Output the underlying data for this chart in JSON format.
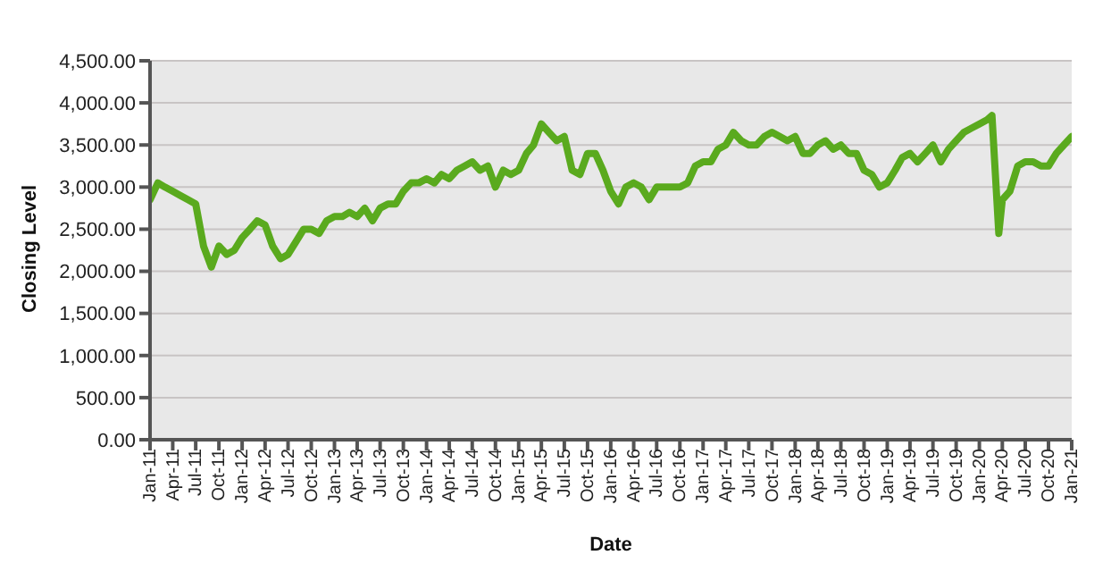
{
  "chart_data": {
    "type": "line",
    "xlabel": "Date",
    "ylabel": "Closing Level",
    "grid": "y",
    "legend": false,
    "marker": "none",
    "line_style": "solid",
    "x": [
      "2011-01",
      "2011-02",
      "2011-03",
      "2011-04",
      "2011-05",
      "2011-06",
      "2011-07",
      "2011-08",
      "2011-09",
      "2011-10",
      "2011-11",
      "2011-12",
      "2012-01",
      "2012-02",
      "2012-03",
      "2012-04",
      "2012-05",
      "2012-06",
      "2012-07",
      "2012-08",
      "2012-09",
      "2012-10",
      "2012-11",
      "2012-12",
      "2013-01",
      "2013-02",
      "2013-03",
      "2013-04",
      "2013-05",
      "2013-06",
      "2013-07",
      "2013-08",
      "2013-09",
      "2013-10",
      "2013-11",
      "2013-12",
      "2014-01",
      "2014-02",
      "2014-03",
      "2014-04",
      "2014-05",
      "2014-06",
      "2014-07",
      "2014-08",
      "2014-09",
      "2014-10",
      "2014-11",
      "2014-12",
      "2015-01",
      "2015-02",
      "2015-03",
      "2015-04",
      "2015-05",
      "2015-06",
      "2015-07",
      "2015-08",
      "2015-09",
      "2015-10",
      "2015-11",
      "2015-12",
      "2016-01",
      "2016-02",
      "2016-03",
      "2016-04",
      "2016-05",
      "2016-06",
      "2016-07",
      "2016-08",
      "2016-09",
      "2016-10",
      "2016-11",
      "2016-12",
      "2017-01",
      "2017-02",
      "2017-03",
      "2017-04",
      "2017-05",
      "2017-06",
      "2017-07",
      "2017-08",
      "2017-09",
      "2017-10",
      "2017-11",
      "2017-12",
      "2018-01",
      "2018-02",
      "2018-03",
      "2018-04",
      "2018-05",
      "2018-06",
      "2018-07",
      "2018-08",
      "2018-09",
      "2018-10",
      "2018-11",
      "2018-12",
      "2019-01",
      "2019-02",
      "2019-03",
      "2019-04",
      "2019-05",
      "2019-06",
      "2019-07",
      "2019-08",
      "2019-09",
      "2019-10",
      "2019-11",
      "2019-12",
      "2020-01",
      "2020-02",
      "2020-02-20",
      "2020-03-18",
      "2020-04",
      "2020-05",
      "2020-06",
      "2020-07",
      "2020-08",
      "2020-09",
      "2020-10",
      "2020-11",
      "2020-12",
      "2021-01"
    ],
    "series": [
      {
        "color": "#5aaa1e",
        "values": [
          2850,
          3050,
          3000,
          2950,
          2900,
          2850,
          2800,
          2300,
          2050,
          2300,
          2200,
          2250,
          2400,
          2500,
          2600,
          2550,
          2300,
          2150,
          2200,
          2350,
          2500,
          2500,
          2450,
          2600,
          2650,
          2650,
          2700,
          2650,
          2750,
          2600,
          2750,
          2800,
          2800,
          2950,
          3050,
          3050,
          3100,
          3050,
          3150,
          3100,
          3200,
          3250,
          3300,
          3200,
          3250,
          3000,
          3200,
          3150,
          3200,
          3400,
          3500,
          3750,
          3650,
          3550,
          3600,
          3200,
          3150,
          3400,
          3400,
          3200,
          2950,
          2800,
          3000,
          3050,
          3000,
          2850,
          3000,
          3000,
          3000,
          3000,
          3050,
          3250,
          3300,
          3300,
          3450,
          3500,
          3650,
          3550,
          3500,
          3500,
          3600,
          3650,
          3600,
          3550,
          3600,
          3400,
          3400,
          3500,
          3550,
          3450,
          3500,
          3400,
          3400,
          3200,
          3150,
          3000,
          3050,
          3200,
          3350,
          3400,
          3300,
          3400,
          3500,
          3300,
          3450,
          3550,
          3650,
          3700,
          3750,
          3800,
          3850,
          2450,
          2850,
          2950,
          3250,
          3300,
          3300,
          3250,
          3250,
          3400,
          3500,
          3600
        ]
      }
    ],
    "xlim": [
      "2011-01",
      "2021-01"
    ],
    "xticks": [
      {
        "value": "2011-01",
        "label": "Jan-11"
      },
      {
        "value": "2011-04",
        "label": "Apr-11"
      },
      {
        "value": "2011-07",
        "label": "Jul-11"
      },
      {
        "value": "2011-10",
        "label": "Oct-11"
      },
      {
        "value": "2012-01",
        "label": "Jan-12"
      },
      {
        "value": "2012-04",
        "label": "Apr-12"
      },
      {
        "value": "2012-07",
        "label": "Jul-12"
      },
      {
        "value": "2012-10",
        "label": "Oct-12"
      },
      {
        "value": "2013-01",
        "label": "Jan-13"
      },
      {
        "value": "2013-04",
        "label": "Apr-13"
      },
      {
        "value": "2013-07",
        "label": "Jul-13"
      },
      {
        "value": "2013-10",
        "label": "Oct-13"
      },
      {
        "value": "2014-01",
        "label": "Jan-14"
      },
      {
        "value": "2014-04",
        "label": "Apr-14"
      },
      {
        "value": "2014-07",
        "label": "Jul-14"
      },
      {
        "value": "2014-10",
        "label": "Oct-14"
      },
      {
        "value": "2015-01",
        "label": "Jan-15"
      },
      {
        "value": "2015-04",
        "label": "Apr-15"
      },
      {
        "value": "2015-07",
        "label": "Jul-15"
      },
      {
        "value": "2015-10",
        "label": "Oct-15"
      },
      {
        "value": "2016-01",
        "label": "Jan-16"
      },
      {
        "value": "2016-04",
        "label": "Apr-16"
      },
      {
        "value": "2016-07",
        "label": "Jul-16"
      },
      {
        "value": "2016-10",
        "label": "Oct-16"
      },
      {
        "value": "2017-01",
        "label": "Jan-17"
      },
      {
        "value": "2017-04",
        "label": "Apr-17"
      },
      {
        "value": "2017-07",
        "label": "Jul-17"
      },
      {
        "value": "2017-10",
        "label": "Oct-17"
      },
      {
        "value": "2018-01",
        "label": "Jan-18"
      },
      {
        "value": "2018-04",
        "label": "Apr-18"
      },
      {
        "value": "2018-07",
        "label": "Jul-18"
      },
      {
        "value": "2018-10",
        "label": "Oct-18"
      },
      {
        "value": "2019-01",
        "label": "Jan-19"
      },
      {
        "value": "2019-04",
        "label": "Apr-19"
      },
      {
        "value": "2019-07",
        "label": "Jul-19"
      },
      {
        "value": "2019-10",
        "label": "Oct-19"
      },
      {
        "value": "2020-01",
        "label": "Jan-20"
      },
      {
        "value": "2020-04",
        "label": "Apr-20"
      },
      {
        "value": "2020-07",
        "label": "Jul-20"
      },
      {
        "value": "2020-10",
        "label": "Oct-20"
      },
      {
        "value": "2021-01",
        "label": "Jan-21"
      }
    ],
    "ylim": [
      0,
      4500
    ],
    "yticks": [
      {
        "value": 0,
        "label": "0.00"
      },
      {
        "value": 500,
        "label": "500.00"
      },
      {
        "value": 1000,
        "label": "1,000.00"
      },
      {
        "value": 1500,
        "label": "1,500.00"
      },
      {
        "value": 2000,
        "label": "2,000.00"
      },
      {
        "value": 2500,
        "label": "2,500.00"
      },
      {
        "value": 3000,
        "label": "3,000.00"
      },
      {
        "value": 3500,
        "label": "3,500.00"
      },
      {
        "value": 4000,
        "label": "4,000.00"
      },
      {
        "value": 4500,
        "label": "4,500.00"
      }
    ]
  }
}
